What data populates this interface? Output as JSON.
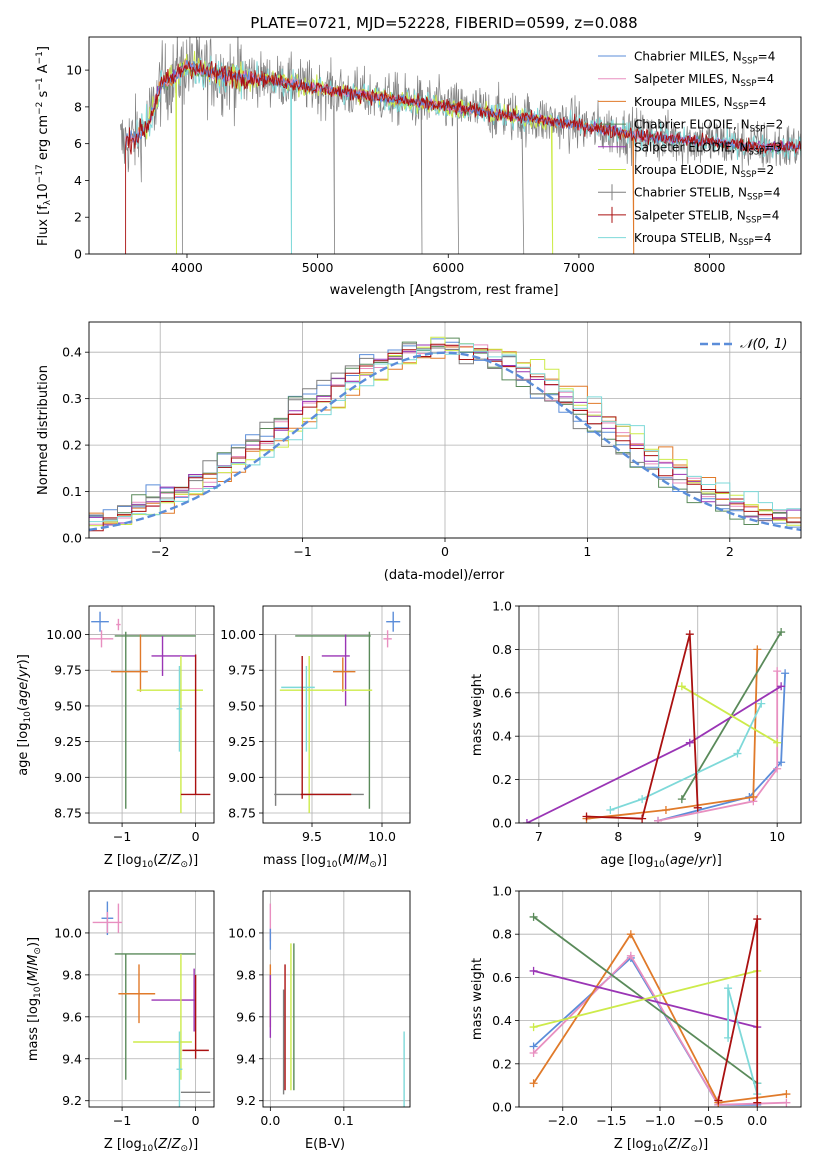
{
  "colors": {
    "chabrier_miles": "#5b8dd9",
    "salpeter_miles": "#e88fc0",
    "kroupa_miles": "#e07a2a",
    "chabrier_elodie": "#5a8a5a",
    "salpeter_elodie": "#9a35b5",
    "kroupa_elodie": "#cdeb4a",
    "chabrier_stelib": "#7f7f7f",
    "salpeter_stelib": "#aa1111",
    "kroupa_stelib": "#7ed9d9"
  },
  "chart_data": [
    {
      "id": "spectrum",
      "type": "line",
      "title": "PLATE=0721, MJD=52228, FIBERID=0599, z=0.088",
      "xlabel": "wavelength [Angstrom, rest frame]",
      "ylabel": "Flux [fλ10⁻¹⁷ erg cm⁻² s⁻¹ A⁻¹]",
      "xlim": [
        3250,
        8700
      ],
      "ylim": [
        0,
        11.8
      ],
      "xticks": [
        4000,
        5000,
        6000,
        7000,
        8000
      ],
      "yticks": [
        0,
        2,
        4,
        6,
        8,
        10
      ],
      "legend": [
        "Chabrier MILES, N_SSP=4",
        "Salpeter MILES, N_SSP=4",
        "Kroupa MILES, N_SSP=4",
        "Chabrier ELODIE, N_SSP=2",
        "Salpeter ELODIE, N_SSP=3",
        "Kroupa ELODIE, N_SSP=2",
        "Chabrier STELIB, N_SSP=4",
        "Salpeter STELIB, N_SSP=4",
        "Kroupa STELIB, N_SSP=4"
      ],
      "legend_colors": [
        "chabrier_miles",
        "salpeter_miles",
        "kroupa_miles",
        "chabrier_elodie",
        "salpeter_elodie",
        "kroupa_elodie",
        "chabrier_stelib",
        "salpeter_stelib",
        "kroupa_stelib"
      ],
      "legend_placement": "upper-right",
      "continuum": [
        [
          3500,
          6.0
        ],
        [
          3600,
          6.3
        ],
        [
          3700,
          7.0
        ],
        [
          3800,
          9.2
        ],
        [
          3900,
          9.6
        ],
        [
          4000,
          10.3
        ],
        [
          4100,
          10.0
        ],
        [
          4300,
          9.7
        ],
        [
          4500,
          9.6
        ],
        [
          4800,
          9.3
        ],
        [
          5000,
          9.0
        ],
        [
          5500,
          8.5
        ],
        [
          6000,
          8.0
        ],
        [
          6500,
          7.5
        ],
        [
          7000,
          7.0
        ],
        [
          7500,
          6.4
        ],
        [
          8000,
          6.1
        ],
        [
          8500,
          5.8
        ]
      ],
      "dips": [
        {
          "series": "salpeter_stelib",
          "x": 3530
        },
        {
          "series": "kroupa_elodie",
          "x": 3920
        },
        {
          "series": "chabrier_stelib",
          "x": 3965
        },
        {
          "series": "kroupa_stelib",
          "x": 4800
        },
        {
          "series": "chabrier_stelib",
          "x": 5130
        },
        {
          "series": "chabrier_stelib",
          "x": 5800
        },
        {
          "series": "chabrier_stelib",
          "x": 6080
        },
        {
          "series": "chabrier_stelib",
          "x": 6580
        },
        {
          "series": "kroupa_elodie",
          "x": 6800
        },
        {
          "series": "kroupa_miles",
          "x": 7420
        }
      ],
      "grid": false
    },
    {
      "id": "residuals",
      "type": "histogram",
      "xlabel": "(data-model)/error",
      "ylabel": "Normed distribution",
      "xlim": [
        -2.5,
        2.5
      ],
      "ylim": [
        0,
        0.465
      ],
      "xticks": [
        -2,
        -1,
        0,
        1,
        2
      ],
      "yticks": [
        0.0,
        0.1,
        0.2,
        0.3,
        0.4
      ],
      "bin_width": 0.1,
      "reference_curve": {
        "label": "𝒩(0, 1)",
        "color": "#5b8dd9",
        "style": "dashed"
      },
      "legend_placement": "upper-right",
      "grid": true
    },
    {
      "id": "age_vs_Z",
      "type": "errorbar",
      "xlabel": "Z [log10(Z/Z⊙)]",
      "ylabel": "age [log10(age/yr)]",
      "xlim": [
        -1.45,
        0.25
      ],
      "ylim": [
        8.68,
        10.2
      ],
      "xticks": [
        -1,
        0
      ],
      "yticks": [
        8.75,
        9.0,
        9.25,
        9.5,
        9.75,
        10.0
      ],
      "points": [
        {
          "s": "chabrier_miles",
          "x": -1.3,
          "xerr": 0.12,
          "y": 10.09,
          "yerr": 0.07
        },
        {
          "s": "salpeter_miles",
          "x": -1.28,
          "xerr": 0.16,
          "y": 9.97,
          "yerr": 0.06
        },
        {
          "s": "salpeter_miles",
          "x": -1.05,
          "xerr": 0.03,
          "y": 10.07,
          "yerr": 0.04
        },
        {
          "s": "chabrier_elodie",
          "x": -0.55,
          "xerr": 0.55,
          "y": 9.99,
          "yerr": 0.0
        },
        {
          "s": "chabrier_elodie",
          "x": -0.95,
          "xerr": 0.0,
          "y": 9.4,
          "yerr": 0.62
        },
        {
          "s": "kroupa_miles",
          "x": -0.9,
          "xerr": 0.25,
          "y": 9.74,
          "yerr": 0.0
        },
        {
          "s": "kroupa_miles",
          "x": -0.75,
          "xerr": 0.0,
          "y": 9.8,
          "yerr": 0.2
        },
        {
          "s": "salpeter_elodie",
          "x": -0.3,
          "xerr": 0.3,
          "y": 9.85,
          "yerr": 0.0
        },
        {
          "s": "salpeter_elodie",
          "x": -0.45,
          "xerr": 0.0,
          "y": 9.85,
          "yerr": 0.14
        },
        {
          "s": "kroupa_elodie",
          "x": -0.35,
          "xerr": 0.45,
          "y": 9.61,
          "yerr": 0.0
        },
        {
          "s": "kroupa_elodie",
          "x": -0.2,
          "xerr": 0.0,
          "y": 9.3,
          "yerr": 0.55
        },
        {
          "s": "kroupa_stelib",
          "x": -0.22,
          "xerr": 0.04,
          "y": 9.48,
          "yerr": 0.3
        },
        {
          "s": "salpeter_stelib",
          "x": 0.0,
          "xerr": 0.2,
          "y": 8.88,
          "yerr": 0.0
        },
        {
          "s": "salpeter_stelib",
          "x": 0.0,
          "xerr": 0.0,
          "y": 9.37,
          "yerr": 0.49
        }
      ],
      "grid": true
    },
    {
      "id": "age_vs_mass",
      "type": "errorbar",
      "xlabel": "mass [log10(M/M⊙)]",
      "ylabel": "",
      "xlim": [
        9.15,
        10.2
      ],
      "ylim": [
        8.68,
        10.2
      ],
      "xticks": [
        9.5,
        10.0
      ],
      "yticks": [
        8.75,
        9.0,
        9.25,
        9.5,
        9.75,
        10.0
      ],
      "points": [
        {
          "s": "chabrier_miles",
          "x": 10.08,
          "xerr": 0.05,
          "y": 10.09,
          "yerr": 0.07
        },
        {
          "s": "salpeter_miles",
          "x": 10.04,
          "xerr": 0.03,
          "y": 9.97,
          "yerr": 0.06
        },
        {
          "s": "chabrier_elodie",
          "x": 9.65,
          "xerr": 0.27,
          "y": 9.99,
          "yerr": 0.0
        },
        {
          "s": "chabrier_elodie",
          "x": 9.91,
          "xerr": 0.0,
          "y": 9.4,
          "yerr": 0.62
        },
        {
          "s": "chabrier_stelib",
          "x": 9.55,
          "xerr": 0.32,
          "y": 8.88,
          "yerr": 0.0
        },
        {
          "s": "chabrier_stelib",
          "x": 9.24,
          "xerr": 0.0,
          "y": 9.4,
          "yerr": 0.6
        },
        {
          "s": "salpeter_elodie",
          "x": 9.67,
          "xerr": 0.1,
          "y": 9.85,
          "yerr": 0.0
        },
        {
          "s": "salpeter_elodie",
          "x": 9.74,
          "xerr": 0.0,
          "y": 9.75,
          "yerr": 0.25
        },
        {
          "s": "kroupa_miles",
          "x": 9.73,
          "xerr": 0.08,
          "y": 9.74,
          "yerr": 0.0
        },
        {
          "s": "kroupa_miles",
          "x": 9.72,
          "xerr": 0.0,
          "y": 9.72,
          "yerr": 0.12
        },
        {
          "s": "kroupa_elodie",
          "x": 9.6,
          "xerr": 0.33,
          "y": 9.61,
          "yerr": 0.0
        },
        {
          "s": "kroupa_elodie",
          "x": 9.48,
          "xerr": 0.0,
          "y": 9.3,
          "yerr": 0.55
        },
        {
          "s": "kroupa_stelib",
          "x": 9.4,
          "xerr": 0.12,
          "y": 9.63,
          "yerr": 0.0
        },
        {
          "s": "kroupa_stelib",
          "x": 9.46,
          "xerr": 0.0,
          "y": 9.48,
          "yerr": 0.3
        },
        {
          "s": "salpeter_stelib",
          "x": 9.6,
          "xerr": 0.18,
          "y": 8.88,
          "yerr": 0.0
        },
        {
          "s": "salpeter_stelib",
          "x": 9.43,
          "xerr": 0.0,
          "y": 9.35,
          "yerr": 0.5
        }
      ],
      "grid": true
    },
    {
      "id": "mass_weight_vs_age",
      "type": "line",
      "xlabel": "age [log10(age/yr)]",
      "ylabel": "mass weight",
      "xlim": [
        6.75,
        10.3
      ],
      "ylim": [
        0,
        1.0
      ],
      "xticks": [
        7,
        8,
        9,
        10
      ],
      "yticks": [
        0.0,
        0.2,
        0.4,
        0.6,
        0.8,
        1.0
      ],
      "series": [
        {
          "s": "chabrier_miles",
          "x": [
            8.5,
            9.65,
            10.05,
            10.1
          ],
          "y": [
            0.01,
            0.12,
            0.28,
            0.69
          ]
        },
        {
          "s": "salpeter_miles",
          "x": [
            8.5,
            9.7,
            10.0,
            10.0
          ],
          "y": [
            0.01,
            0.1,
            0.25,
            0.7
          ]
        },
        {
          "s": "kroupa_miles",
          "x": [
            7.6,
            8.6,
            9.7,
            9.75
          ],
          "y": [
            0.02,
            0.06,
            0.12,
            0.8
          ]
        },
        {
          "s": "chabrier_elodie",
          "x": [
            8.8,
            10.05
          ],
          "y": [
            0.11,
            0.88
          ]
        },
        {
          "s": "salpeter_elodie",
          "x": [
            6.85,
            8.9,
            10.05
          ],
          "y": [
            0.0,
            0.37,
            0.63
          ]
        },
        {
          "s": "kroupa_elodie",
          "x": [
            8.8,
            10.0
          ],
          "y": [
            0.63,
            0.37
          ]
        },
        {
          "s": "kroupa_stelib",
          "x": [
            7.9,
            8.3,
            9.5,
            9.8
          ],
          "y": [
            0.06,
            0.11,
            0.32,
            0.55
          ]
        },
        {
          "s": "salpeter_stelib",
          "x": [
            7.6,
            8.3,
            8.9,
            9.0
          ],
          "y": [
            0.03,
            0.02,
            0.87,
            0.07
          ]
        }
      ],
      "grid": true
    },
    {
      "id": "mass_vs_Z",
      "type": "errorbar",
      "xlabel": "Z [log10(Z/Z⊙)]",
      "ylabel": "mass [log10(M/M⊙)]",
      "xlim": [
        -1.45,
        0.25
      ],
      "ylim": [
        9.17,
        10.2
      ],
      "xticks": [
        -1,
        0
      ],
      "yticks": [
        9.2,
        9.4,
        9.6,
        9.8,
        10.0
      ],
      "points": [
        {
          "s": "chabrier_miles",
          "x": -1.2,
          "xerr": 0.08,
          "y": 10.07,
          "yerr": 0.08
        },
        {
          "s": "salpeter_miles",
          "x": -1.2,
          "xerr": 0.2,
          "y": 10.05,
          "yerr": 0.05
        },
        {
          "s": "salpeter_miles",
          "x": -1.05,
          "xerr": 0.0,
          "y": 10.07,
          "yerr": 0.07
        },
        {
          "s": "chabrier_elodie",
          "x": -0.55,
          "xerr": 0.55,
          "y": 9.9,
          "yerr": 0.0
        },
        {
          "s": "chabrier_elodie",
          "x": -0.95,
          "xerr": 0.0,
          "y": 9.6,
          "yerr": 0.3
        },
        {
          "s": "kroupa_miles",
          "x": -0.8,
          "xerr": 0.25,
          "y": 9.71,
          "yerr": 0.0
        },
        {
          "s": "kroupa_miles",
          "x": -0.77,
          "xerr": 0.0,
          "y": 9.71,
          "yerr": 0.14
        },
        {
          "s": "salpeter_elodie",
          "x": -0.3,
          "xerr": 0.3,
          "y": 9.68,
          "yerr": 0.0
        },
        {
          "s": "salpeter_elodie",
          "x": -0.02,
          "xerr": 0.0,
          "y": 9.68,
          "yerr": 0.15
        },
        {
          "s": "kroupa_elodie",
          "x": -0.45,
          "xerr": 0.4,
          "y": 9.48,
          "yerr": 0.0
        },
        {
          "s": "kroupa_elodie",
          "x": -0.2,
          "xerr": 0.0,
          "y": 9.6,
          "yerr": 0.3
        },
        {
          "s": "kroupa_stelib",
          "x": -0.22,
          "xerr": 0.04,
          "y": 9.35,
          "yerr": 0.18
        },
        {
          "s": "salpeter_stelib",
          "x": 0.0,
          "xerr": 0.18,
          "y": 9.44,
          "yerr": 0.0
        },
        {
          "s": "salpeter_stelib",
          "x": 0.0,
          "xerr": 0.0,
          "y": 9.6,
          "yerr": 0.2
        },
        {
          "s": "chabrier_stelib",
          "x": 0.0,
          "xerr": 0.2,
          "y": 9.24,
          "yerr": 0.0
        }
      ],
      "grid": true
    },
    {
      "id": "mass_vs_ebv",
      "type": "errorbar",
      "xlabel": "E(B-V)",
      "ylabel": "",
      "xlim": [
        -0.01,
        0.19
      ],
      "ylim": [
        9.17,
        10.2
      ],
      "xticks": [
        0.0,
        0.1
      ],
      "yticks": [
        9.2,
        9.4,
        9.6,
        9.8,
        10.0
      ],
      "points": [
        {
          "s": "salpeter_miles",
          "x": 0.0,
          "xerr": 0.0,
          "y": 10.05,
          "yerr": 0.09
        },
        {
          "s": "chabrier_miles",
          "x": 0.0,
          "xerr": 0.0,
          "y": 9.97,
          "yerr": 0.05
        },
        {
          "s": "kroupa_miles",
          "x": 0.0,
          "xerr": 0.0,
          "y": 9.7,
          "yerr": 0.15
        },
        {
          "s": "salpeter_elodie",
          "x": 0.0,
          "xerr": 0.0,
          "y": 9.65,
          "yerr": 0.15
        },
        {
          "s": "chabrier_stelib",
          "x": 0.018,
          "xerr": 0.0,
          "y": 9.48,
          "yerr": 0.25
        },
        {
          "s": "salpeter_stelib",
          "x": 0.02,
          "xerr": 0.0,
          "y": 9.55,
          "yerr": 0.3
        },
        {
          "s": "kroupa_elodie",
          "x": 0.028,
          "xerr": 0.0,
          "y": 9.6,
          "yerr": 0.35
        },
        {
          "s": "chabrier_elodie",
          "x": 0.032,
          "xerr": 0.0,
          "y": 9.6,
          "yerr": 0.35
        },
        {
          "s": "kroupa_stelib",
          "x": 0.182,
          "xerr": 0.0,
          "y": 9.35,
          "yerr": 0.18
        }
      ],
      "grid": true
    },
    {
      "id": "mass_weight_vs_Z",
      "type": "line",
      "xlabel": "Z [log10(Z/Z⊙)]",
      "ylabel": "mass weight",
      "xlim": [
        -2.45,
        0.45
      ],
      "ylim": [
        0,
        1.0
      ],
      "xticks": [
        -2.0,
        -1.5,
        -1.0,
        -0.5,
        0.0
      ],
      "yticks": [
        0.0,
        0.2,
        0.4,
        0.6,
        0.8,
        1.0
      ],
      "series": [
        {
          "s": "chabrier_miles",
          "x": [
            -2.3,
            -1.3,
            -0.4,
            0.0
          ],
          "y": [
            0.28,
            0.69,
            0.01,
            0.01
          ]
        },
        {
          "s": "salpeter_miles",
          "x": [
            -2.3,
            -1.3,
            -0.4,
            0.3
          ],
          "y": [
            0.25,
            0.7,
            0.01,
            0.02
          ]
        },
        {
          "s": "kroupa_miles",
          "x": [
            -2.3,
            -1.3,
            -0.4,
            0.3
          ],
          "y": [
            0.11,
            0.8,
            0.02,
            0.06
          ]
        },
        {
          "s": "chabrier_elodie",
          "x": [
            -2.3,
            0.0
          ],
          "y": [
            0.88,
            0.11
          ]
        },
        {
          "s": "salpeter_elodie",
          "x": [
            -2.3,
            0.0
          ],
          "y": [
            0.63,
            0.37
          ]
        },
        {
          "s": "kroupa_elodie",
          "x": [
            -2.3,
            0.0
          ],
          "y": [
            0.37,
            0.63
          ]
        },
        {
          "s": "kroupa_stelib",
          "x": [
            -0.3,
            -0.3,
            0.0,
            0.0
          ],
          "y": [
            0.32,
            0.55,
            0.06,
            0.11
          ]
        },
        {
          "s": "salpeter_stelib",
          "x": [
            -0.4,
            0.0,
            0.0
          ],
          "y": [
            0.03,
            0.87,
            0.02
          ]
        }
      ],
      "grid": true
    }
  ]
}
